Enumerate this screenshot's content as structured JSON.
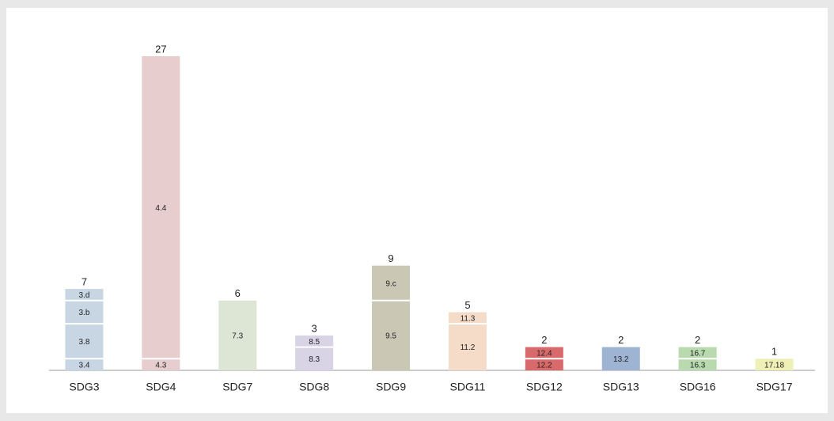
{
  "chart_data": {
    "type": "stacked-bar",
    "categories": [
      "SDG3",
      "SDG4",
      "SDG7",
      "SDG8",
      "SDG9",
      "SDG11",
      "SDG12",
      "SDG13",
      "SDG16",
      "SDG17"
    ],
    "colors": [
      "#c8d6e4",
      "#e7cdcd",
      "#dde6d5",
      "#d9d3e6",
      "#cac8b4",
      "#f5dcc9",
      "#d96a6c",
      "#9fb4d2",
      "#b8daae",
      "#eef0b6"
    ],
    "totals": [
      7,
      27,
      6,
      3,
      9,
      5,
      2,
      2,
      2,
      1
    ],
    "stacks": [
      [
        {
          "label": "3.4",
          "value": 1
        },
        {
          "label": "3.8",
          "value": 3
        },
        {
          "label": "3.b",
          "value": 2
        },
        {
          "label": "3.d",
          "value": 1
        }
      ],
      [
        {
          "label": "4.3",
          "value": 1
        },
        {
          "label": "4.4",
          "value": 26
        }
      ],
      [
        {
          "label": "7.3",
          "value": 6
        }
      ],
      [
        {
          "label": "8.3",
          "value": 2
        },
        {
          "label": "8.5",
          "value": 1
        }
      ],
      [
        {
          "label": "9.5",
          "value": 6
        },
        {
          "label": "9.c",
          "value": 3
        }
      ],
      [
        {
          "label": "11.2",
          "value": 4
        },
        {
          "label": "11.3",
          "value": 1
        }
      ],
      [
        {
          "label": "12.2",
          "value": 1
        },
        {
          "label": "12.4",
          "value": 1
        }
      ],
      [
        {
          "label": "13.2",
          "value": 2
        }
      ],
      [
        {
          "label": "16.3",
          "value": 1
        },
        {
          "label": "16.7",
          "value": 1
        }
      ],
      [
        {
          "label": "17.18",
          "value": 1
        }
      ]
    ]
  }
}
